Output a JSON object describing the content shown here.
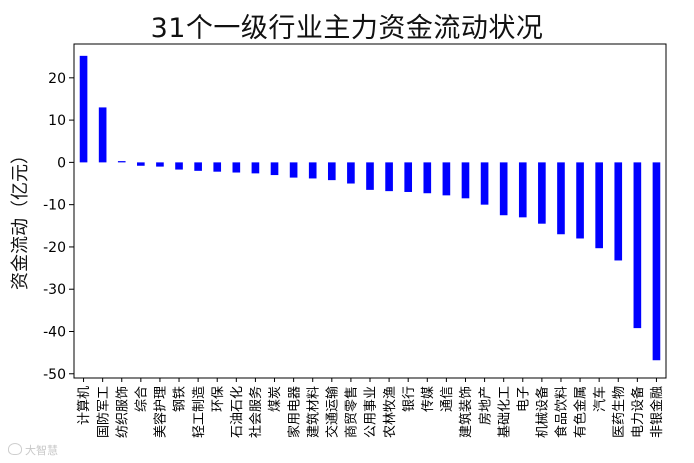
{
  "chart_data": {
    "type": "bar",
    "title": "31个一级行业主力资金流动状况",
    "ylabel": "资金流动（亿元）",
    "xlabel": "",
    "categories": [
      "计算机",
      "国防军工",
      "纺织服饰",
      "综合",
      "美容护理",
      "钢铁",
      "轻工制造",
      "环保",
      "石油石化",
      "社会服务",
      "煤炭",
      "家用电器",
      "建筑材料",
      "交通运输",
      "商贸零售",
      "公用事业",
      "农林牧渔",
      "银行",
      "传媒",
      "通信",
      "建筑装饰",
      "房地产",
      "基础化工",
      "电子",
      "机械设备",
      "食品饮料",
      "有色金属",
      "汽车",
      "医药生物",
      "电力设备",
      "非银金融"
    ],
    "values": [
      25.2,
      13.0,
      0.3,
      -0.8,
      -1.0,
      -1.7,
      -2.0,
      -2.2,
      -2.4,
      -2.6,
      -3.0,
      -3.6,
      -3.8,
      -4.2,
      -5.0,
      -6.5,
      -6.8,
      -7.0,
      -7.3,
      -7.8,
      -8.5,
      -10.0,
      -12.5,
      -13.0,
      -14.5,
      -17.0,
      -18.0,
      -20.3,
      -23.2,
      -39.2,
      -46.8
    ],
    "ylim": [
      -51,
      28
    ],
    "yticks": [
      -50,
      -40,
      -30,
      -20,
      -10,
      0,
      10,
      20
    ],
    "grid": false,
    "bar_color": "#0000ff",
    "legend": "none"
  },
  "watermark": "大智慧"
}
